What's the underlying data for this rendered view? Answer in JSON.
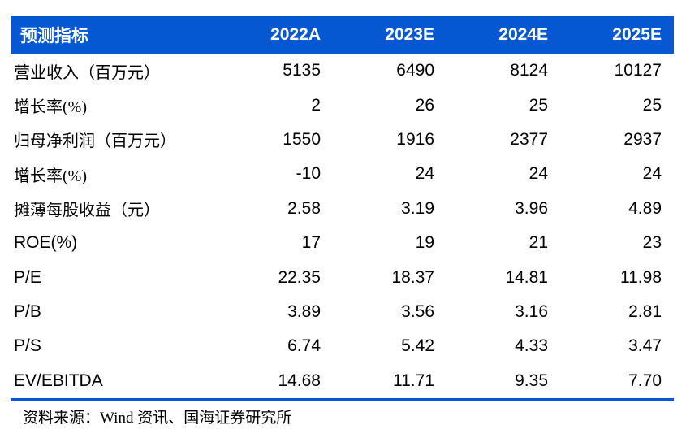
{
  "colors": {
    "header_background": "#0557d2",
    "header_text": "#ffffff",
    "body_text": "#000000",
    "bottom_rule": "#0557d2",
    "page_background": "#ffffff"
  },
  "table": {
    "header": {
      "indicator_label": "预测指标",
      "year_columns": [
        "2022A",
        "2023E",
        "2024E",
        "2025E"
      ]
    },
    "rows": [
      {
        "label": "营业收入（百万元）",
        "values": [
          "5135",
          "6490",
          "8124",
          "10127"
        ]
      },
      {
        "label": "增长率(%)",
        "values": [
          "2",
          "26",
          "25",
          "25"
        ]
      },
      {
        "label": "归母净利润（百万元）",
        "values": [
          "1550",
          "1916",
          "2377",
          "2937"
        ]
      },
      {
        "label": "增长率(%)",
        "values": [
          "-10",
          "24",
          "24",
          "24"
        ]
      },
      {
        "label": "摊薄每股收益（元）",
        "values": [
          "2.58",
          "3.19",
          "3.96",
          "4.89"
        ]
      },
      {
        "label": "ROE(%)",
        "values": [
          "17",
          "19",
          "21",
          "23"
        ]
      },
      {
        "label": "P/E",
        "values": [
          "22.35",
          "18.37",
          "14.81",
          "11.98"
        ]
      },
      {
        "label": "P/B",
        "values": [
          "3.89",
          "3.56",
          "3.16",
          "2.81"
        ]
      },
      {
        "label": "P/S",
        "values": [
          "6.74",
          "5.42",
          "4.33",
          "3.47"
        ]
      },
      {
        "label": "EV/EBITDA",
        "values": [
          "14.68",
          "11.71",
          "9.35",
          "7.70"
        ]
      }
    ]
  },
  "footer": {
    "source": "资料来源：Wind 资讯、国海证券研究所"
  }
}
